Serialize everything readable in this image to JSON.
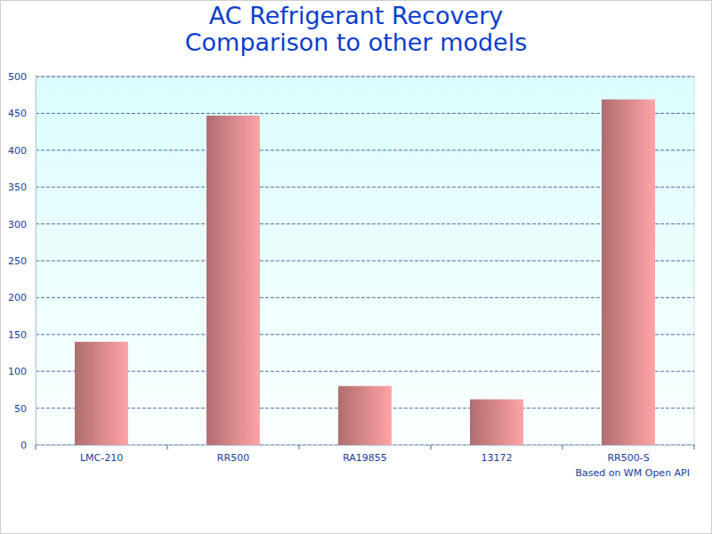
{
  "chart_data": {
    "type": "bar",
    "title": "AC Refrigerant Recovery",
    "subtitle": "Comparison to other models",
    "annotation": "Based on WM Open API",
    "categories": [
      "LMC-210",
      "RR500",
      "RA19855",
      "13172",
      "RR500-S"
    ],
    "values": [
      140,
      447,
      80,
      62,
      469
    ],
    "color": "#e08c8e",
    "ylim": [
      0,
      500
    ],
    "yticks": [
      0,
      50,
      100,
      150,
      200,
      250,
      300,
      350,
      400,
      450,
      500
    ],
    "grid": true
  }
}
